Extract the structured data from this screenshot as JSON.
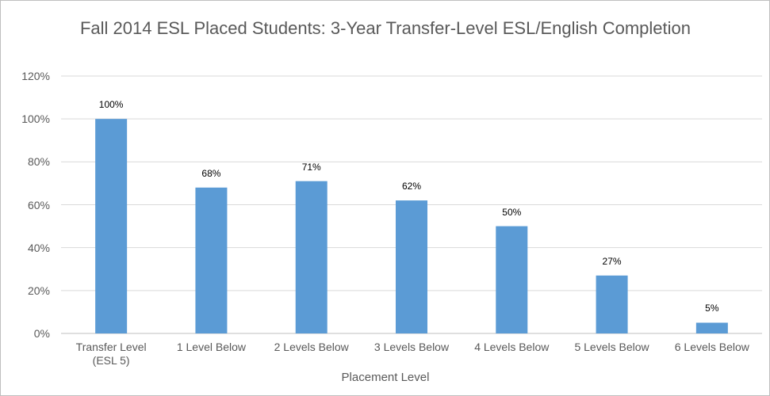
{
  "chart_data": {
    "type": "bar",
    "title": "Fall 2014 ESL Placed Students: 3-Year Transfer-Level ESL/English Completion",
    "x_label": "Placement Level",
    "categories": [
      "Transfer Level (ESL 5)",
      "1 Level Below",
      "2 Levels Below",
      "3 Levels Below",
      "4 Levels Below",
      "5 Levels Below",
      "6 Levels Below"
    ],
    "values": [
      100,
      68,
      71,
      62,
      50,
      27,
      5
    ],
    "value_labels": [
      "100%",
      "68%",
      "71%",
      "62%",
      "50%",
      "27%",
      "5%"
    ],
    "color": "#5b9bd5",
    "ylim": [
      0,
      120
    ],
    "yticks": [
      {
        "value": 0,
        "label": "0%"
      },
      {
        "value": 20,
        "label": "20%"
      },
      {
        "value": 40,
        "label": "40%"
      },
      {
        "value": 60,
        "label": "60%"
      },
      {
        "value": 80,
        "label": "80%"
      },
      {
        "value": 100,
        "label": "100%"
      },
      {
        "value": 120,
        "label": "120%"
      }
    ],
    "grid": true
  }
}
